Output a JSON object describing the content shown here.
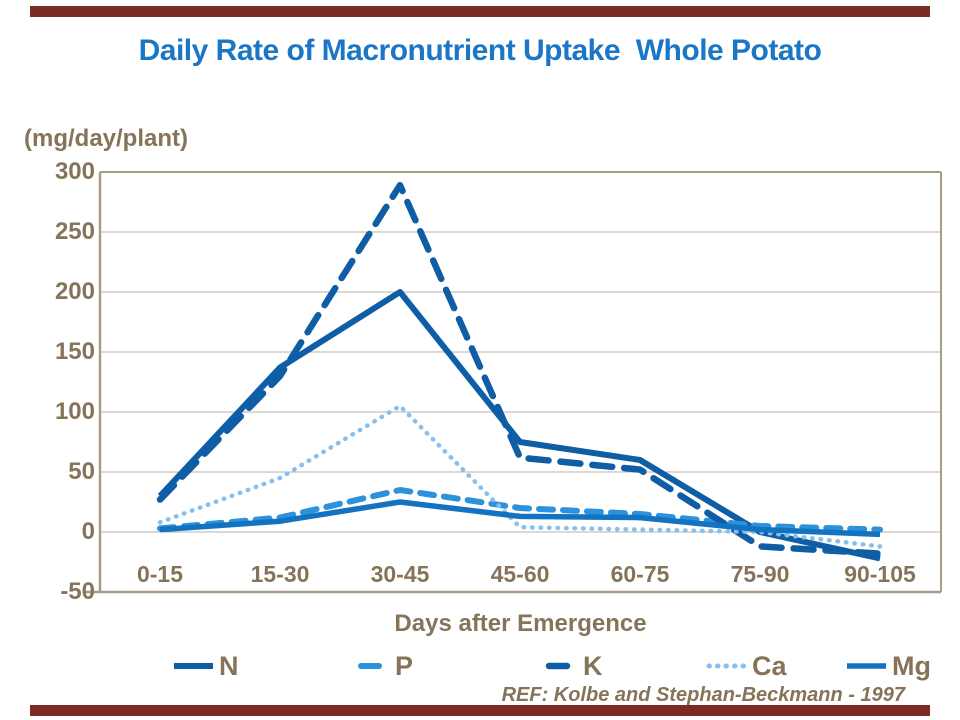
{
  "page": {
    "title": "Daily Rate of Macronutrient Uptake  Whole Potato",
    "ref_note": "REF: Kolbe and Stephan-Beckmann - 1997",
    "accent_bar_color": "#7C2A24",
    "title_color": "#1B76C6",
    "axis_text_color": "#857459",
    "grid_color": "#B9B0A4",
    "border_color": "#A89C89"
  },
  "chart_data": {
    "type": "line",
    "title": "Daily Rate of Macronutrient Uptake  Whole Potato",
    "unit_label": "(mg/day/plant)",
    "xlabel": "Days after Emergence",
    "ylabel": "",
    "ylim": [
      -50,
      300
    ],
    "yticks": [
      300,
      250,
      200,
      150,
      100,
      50,
      0,
      -50
    ],
    "grid": true,
    "legend_position": "bottom",
    "categories": [
      "0-15",
      "15-30",
      "30-45",
      "45-60",
      "60-75",
      "75-90",
      "90-105"
    ],
    "series": [
      {
        "name": "N",
        "color": "#0F5DA5",
        "style": "solid",
        "width": 6,
        "dash": null,
        "values": [
          30,
          137,
          200,
          75,
          60,
          0,
          -22
        ]
      },
      {
        "name": "P",
        "color": "#2C92DC",
        "style": "dashed",
        "width": 6,
        "dash": "14 10",
        "values": [
          3,
          12,
          35,
          20,
          15,
          5,
          2
        ]
      },
      {
        "name": "K",
        "color": "#0F5DA5",
        "style": "dashed",
        "width": 6.5,
        "dash": "20 12",
        "values": [
          27,
          130,
          289,
          62,
          52,
          -12,
          -18
        ]
      },
      {
        "name": "Ca",
        "color": "#87C0EF",
        "style": "dotted",
        "width": 4.5,
        "dash": "0.5 8",
        "values": [
          8,
          45,
          105,
          4,
          2,
          0,
          -12
        ]
      },
      {
        "name": "Mg",
        "color": "#1373C1",
        "style": "solid",
        "width": 5.5,
        "dash": null,
        "values": [
          2,
          9,
          25,
          13,
          12,
          2,
          -2
        ]
      }
    ],
    "legend_item_x": [
      173,
      349,
      537,
      706,
      846
    ]
  }
}
